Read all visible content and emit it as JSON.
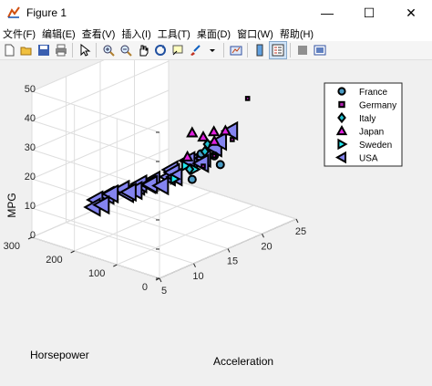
{
  "window": {
    "title": "Figure 1",
    "minimize": "—",
    "maximize": "☐",
    "close": "✕"
  },
  "menu": [
    "文件(F)",
    "编辑(E)",
    "查看(V)",
    "插入(I)",
    "工具(T)",
    "桌面(D)",
    "窗口(W)",
    "帮助(H)"
  ],
  "toolbar": [
    "new-figure-icon",
    "open-file-icon",
    "save-icon",
    "print-icon",
    "pointer-icon",
    "zoom-in-icon",
    "zoom-out-icon",
    "pan-icon",
    "rotate-3d-icon",
    "data-cursor-icon",
    "brush-icon",
    "link-plot-icon",
    "colorbar-icon",
    "legend-icon",
    "hide-plot-tools-icon",
    "show-plot-tools-icon"
  ],
  "chart_data": {
    "type": "scatter",
    "title": "",
    "xlabel": "Acceleration",
    "ylabel": "Horsepower",
    "zlabel": "MPG",
    "xlim": [
      5,
      25
    ],
    "ylim": [
      0,
      300
    ],
    "zlim": [
      0,
      50
    ],
    "x_ticks": [
      "5",
      "10",
      "15",
      "20",
      "25"
    ],
    "y_ticks": [
      "0",
      "100",
      "200",
      "300"
    ],
    "z_ticks": [
      "0",
      "10",
      "20",
      "30",
      "40",
      "50"
    ],
    "grid": true,
    "legend_position": "top-right",
    "legend": [
      {
        "name": "France",
        "marker": "circle",
        "color": "#4a9bc4"
      },
      {
        "name": "Germany",
        "marker": "square",
        "color": "#b020b0"
      },
      {
        "name": "Italy",
        "marker": "diamond",
        "color": "#20c0d0"
      },
      {
        "name": "Japan",
        "marker": "triangle-up",
        "color": "#e020e0"
      },
      {
        "name": "Sweden",
        "marker": "triangle-right",
        "color": "#20e8f0"
      },
      {
        "name": "USA",
        "marker": "triangle-left",
        "color": "#8484f0"
      }
    ],
    "series": [
      {
        "name": "France",
        "points": [
          [
            19.5,
            90,
            20
          ],
          [
            17,
            95,
            26
          ],
          [
            16,
            100,
            18
          ],
          [
            18,
            80,
            25
          ]
        ]
      },
      {
        "name": "Germany",
        "points": [
          [
            21,
            50,
            43
          ],
          [
            18,
            80,
            25
          ],
          [
            20,
            70,
            29
          ],
          [
            17,
            90,
            22
          ]
        ]
      },
      {
        "name": "Italy",
        "points": [
          [
            16,
            70,
            29
          ],
          [
            17,
            80,
            30
          ],
          [
            15,
            90,
            23
          ]
        ]
      },
      {
        "name": "Japan",
        "points": [
          [
            17,
            90,
            32
          ],
          [
            18,
            80,
            30
          ],
          [
            16,
            100,
            34
          ],
          [
            19,
            70,
            33
          ],
          [
            15,
            95,
            27
          ],
          [
            17,
            65,
            35
          ]
        ]
      },
      {
        "name": "Sweden",
        "points": [
          [
            17,
            110,
            20
          ],
          [
            15,
            125,
            18
          ],
          [
            16,
            115,
            22
          ]
        ]
      },
      {
        "name": "USA",
        "points": [
          [
            12,
            200,
            14
          ],
          [
            11,
            220,
            12
          ],
          [
            13,
            180,
            15
          ],
          [
            10,
            230,
            11
          ],
          [
            12,
            190,
            13
          ],
          [
            9,
            220,
            10
          ],
          [
            14,
            160,
            17
          ],
          [
            13,
            175,
            16
          ],
          [
            15,
            140,
            18
          ],
          [
            16,
            150,
            19
          ],
          [
            11,
            210,
            13
          ],
          [
            14,
            170,
            15
          ],
          [
            13,
            150,
            17
          ],
          [
            12,
            170,
            15
          ],
          [
            17,
            120,
            22
          ],
          [
            15,
            130,
            20
          ],
          [
            16,
            110,
            24
          ],
          [
            18,
            105,
            23
          ],
          [
            19,
            95,
            26
          ],
          [
            20,
            100,
            27
          ],
          [
            21,
            90,
            30
          ],
          [
            18,
            110,
            21
          ],
          [
            16,
            140,
            17
          ],
          [
            14,
            140,
            16
          ],
          [
            13,
            200,
            12
          ],
          [
            10,
            215,
            10
          ]
        ]
      }
    ]
  }
}
